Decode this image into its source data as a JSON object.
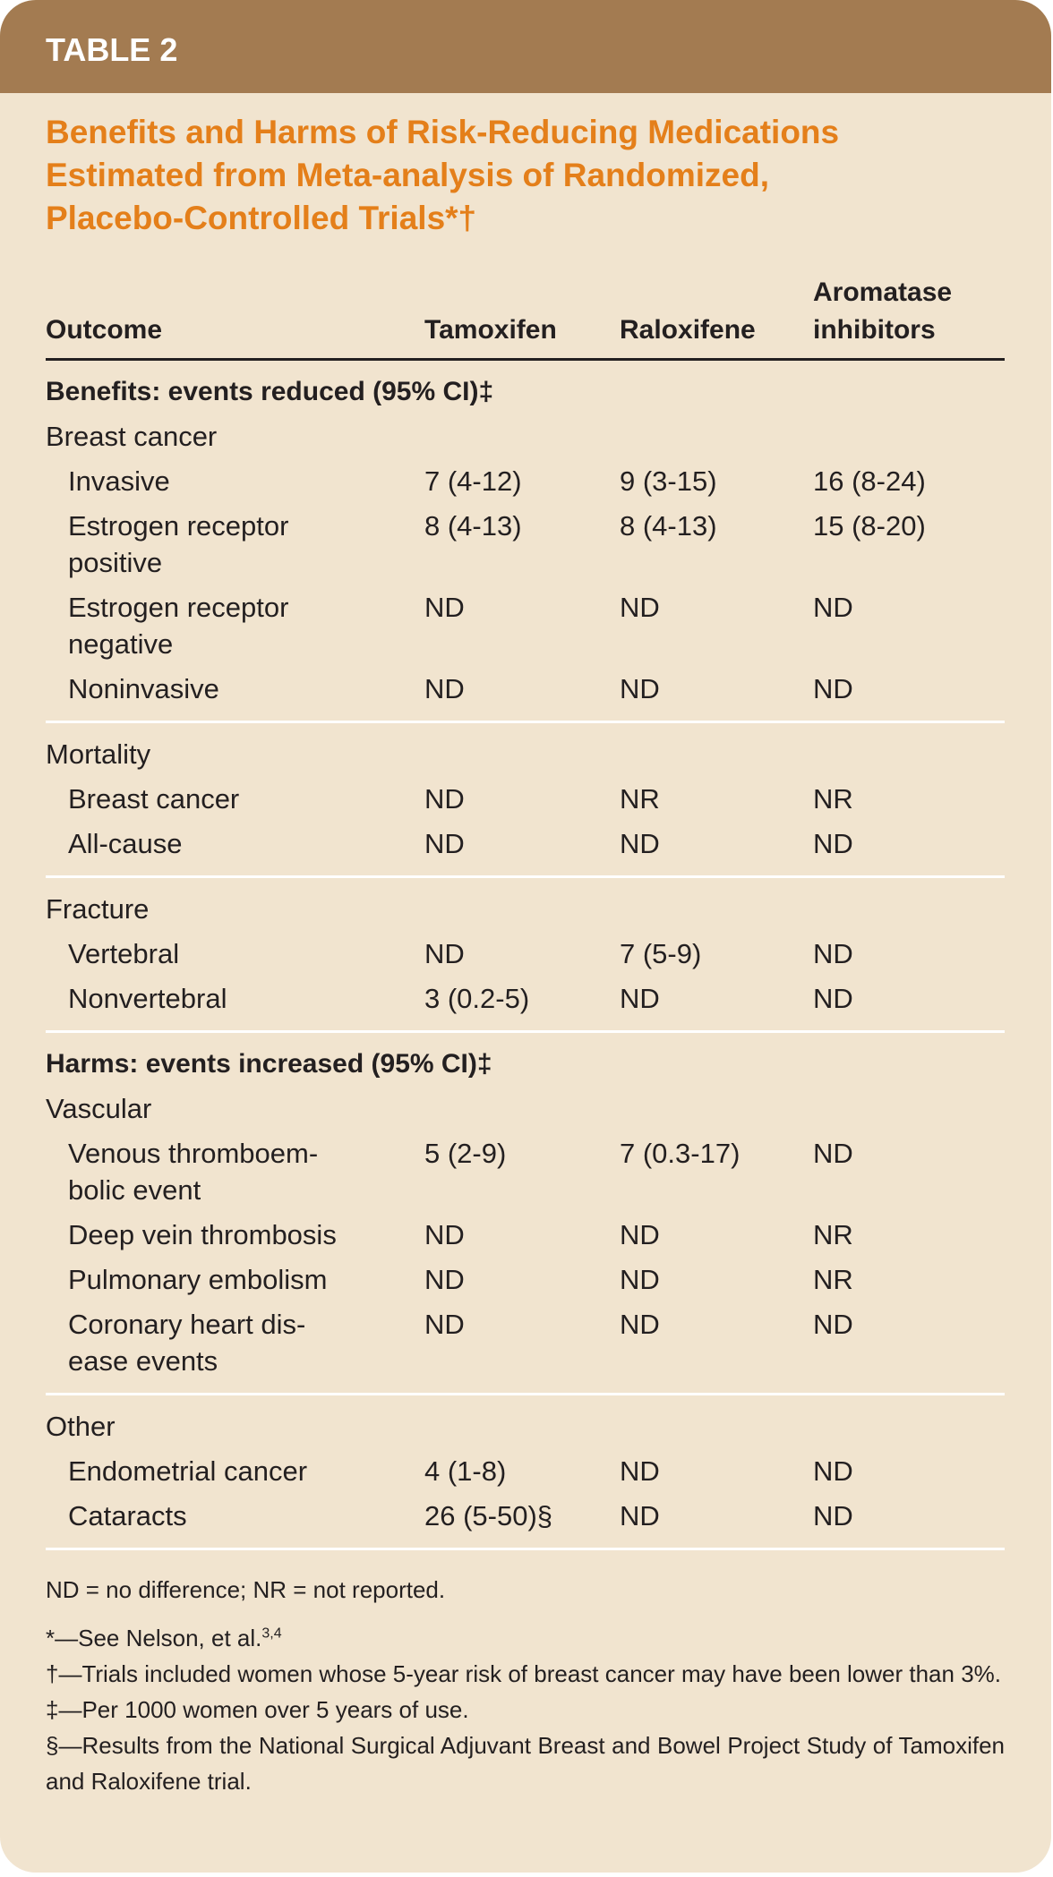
{
  "header": {
    "label": "TABLE 2",
    "title_lines": [
      "Benefits and Harms of Risk-Reducing Medications",
      "Estimated from Meta-analysis of Randomized,",
      "Placebo-Controlled Trials*†"
    ]
  },
  "table": {
    "columns": [
      "Outcome",
      "Tamoxifen",
      "Raloxifene",
      "Aromatase\ninhibitors"
    ],
    "sections": [
      {
        "heading": "Benefits: events reduced (95% CI)‡",
        "groups": [
          {
            "name": "Breast cancer",
            "rows": [
              [
                "Invasive",
                "7 (4-12)",
                "9 (3-15)",
                "16 (8-24)"
              ],
              [
                "Estrogen receptor\npositive",
                "8 (4-13)",
                "8 (4-13)",
                "15 (8-20)"
              ],
              [
                "Estrogen receptor\nnegative",
                "ND",
                "ND",
                "ND"
              ],
              [
                "Noninvasive",
                "ND",
                "ND",
                "ND"
              ]
            ]
          },
          {
            "name": "Mortality",
            "rows": [
              [
                "Breast cancer",
                "ND",
                "NR",
                "NR"
              ],
              [
                "All-cause",
                "ND",
                "ND",
                "ND"
              ]
            ]
          },
          {
            "name": "Fracture",
            "rows": [
              [
                "Vertebral",
                "ND",
                "7 (5-9)",
                "ND"
              ],
              [
                "Nonvertebral",
                "3 (0.2-5)",
                "ND",
                "ND"
              ]
            ]
          }
        ]
      },
      {
        "heading": "Harms: events increased (95% CI)‡",
        "groups": [
          {
            "name": "Vascular",
            "rows": [
              [
                "Venous thromboem-\nbolic event",
                "5 (2-9)",
                "7 (0.3-17)",
                "ND"
              ],
              [
                "Deep vein thrombosis",
                "ND",
                "ND",
                "NR"
              ],
              [
                "Pulmonary embolism",
                "ND",
                "ND",
                "NR"
              ],
              [
                "Coronary heart dis-\nease events",
                "ND",
                "ND",
                "ND"
              ]
            ]
          },
          {
            "name": "Other",
            "rows": [
              [
                "Endometrial cancer",
                "4 (1-8)",
                "ND",
                "ND"
              ],
              [
                "Cataracts",
                "26 (5-50)§",
                "ND",
                "ND"
              ]
            ]
          }
        ]
      }
    ]
  },
  "footnotes": [
    {
      "text": "ND = no difference; NR = not reported."
    },
    {
      "text": "*—See Nelson, et al.",
      "sup": "3,4"
    },
    {
      "text": "†—Trials included women whose 5-year risk of breast cancer may have been lower than 3%."
    },
    {
      "text": "‡—Per 1000 women over 5 years of use."
    },
    {
      "text": "§—Results from the National Surgical Adjuvant Breast and Bowel Project Study of Tamoxifen and Raloxifene trial."
    }
  ]
}
